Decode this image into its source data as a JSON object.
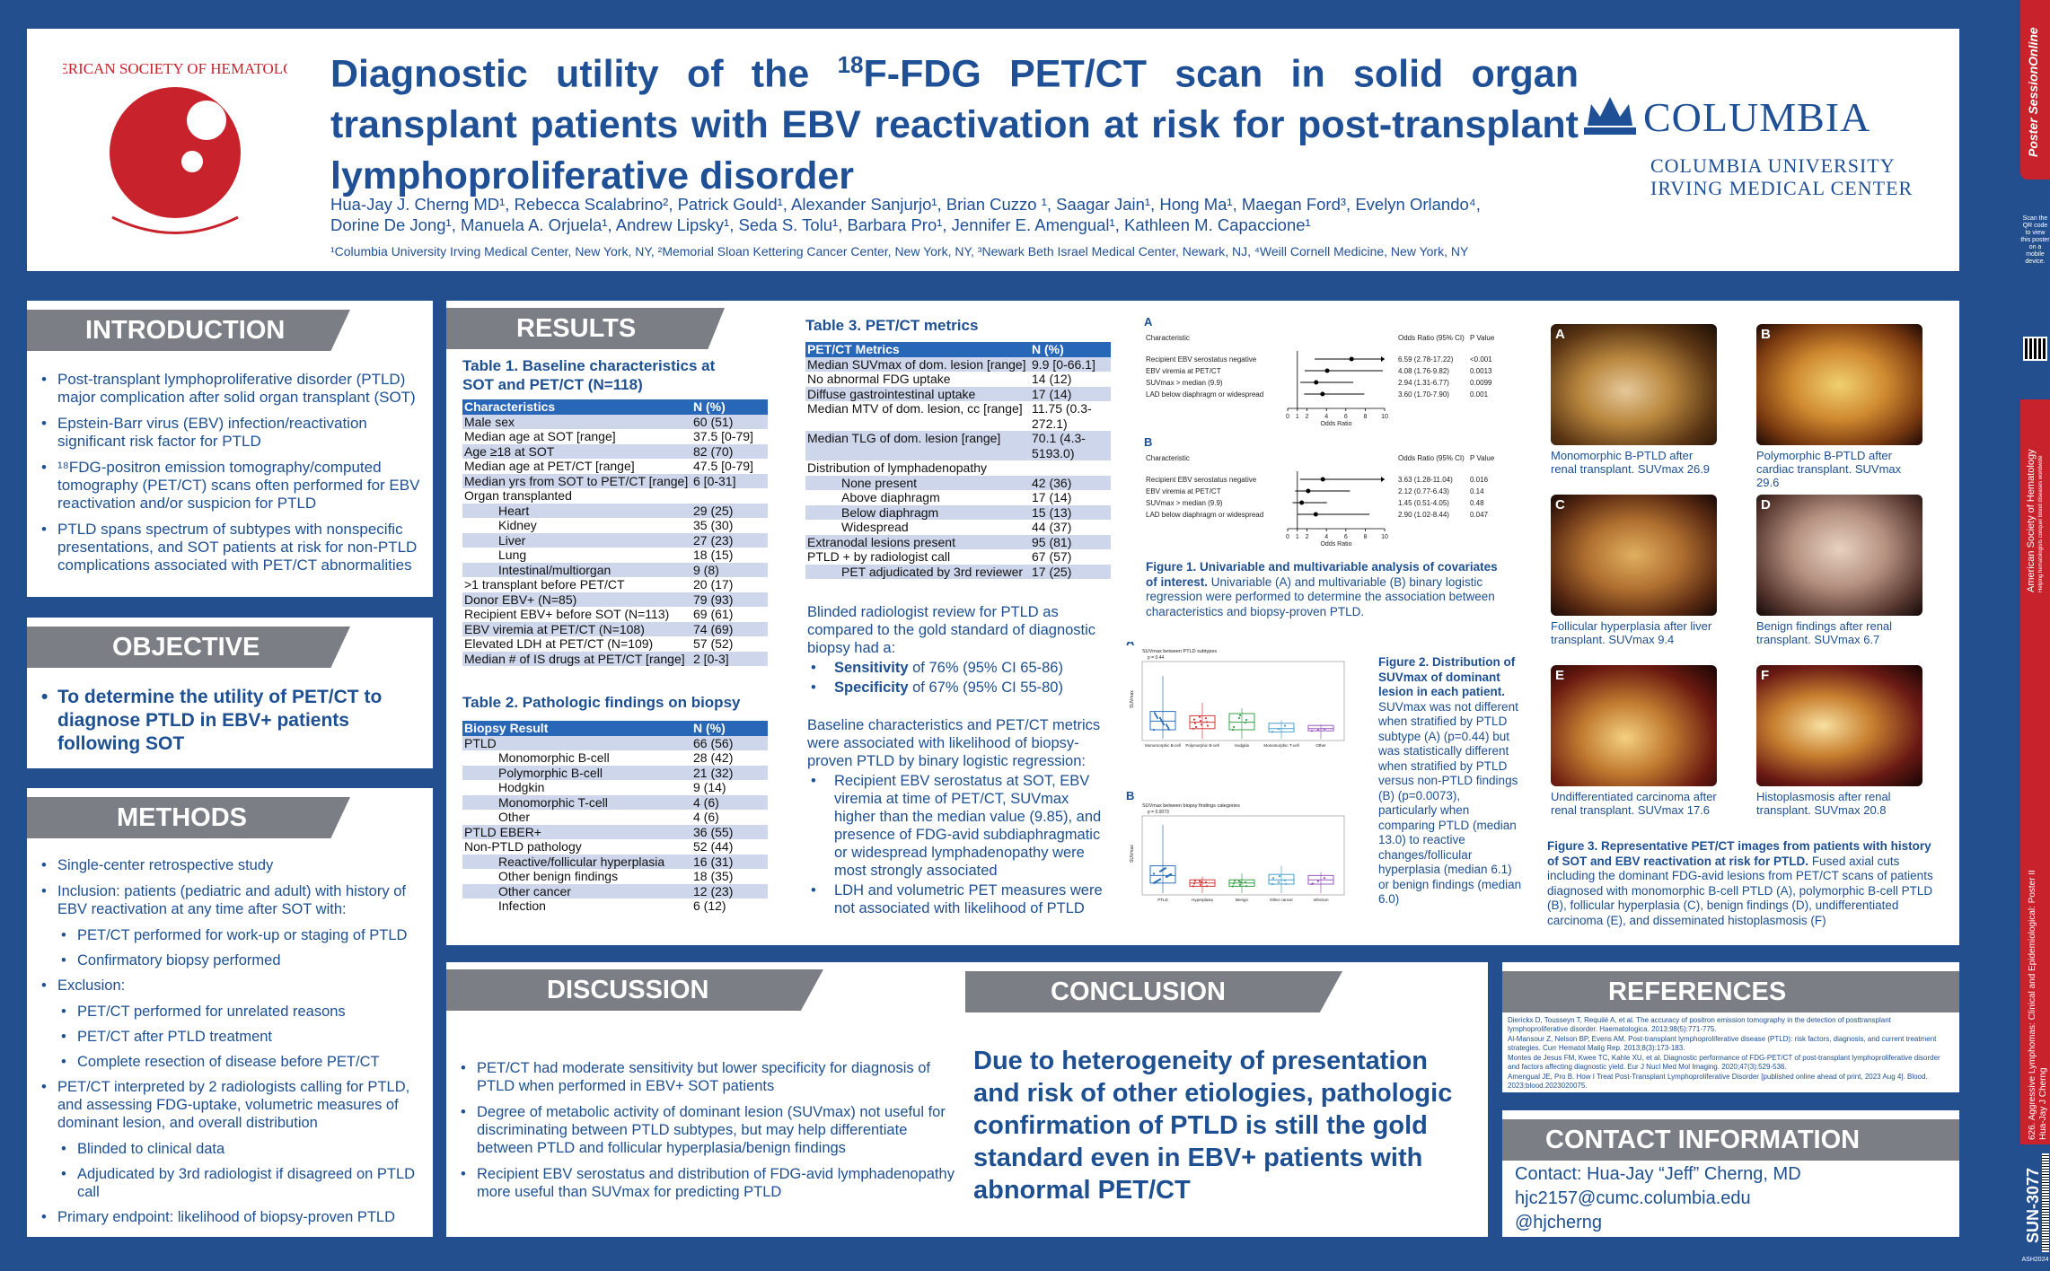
{
  "header": {
    "title_pre": "Diagnostic utility of the ",
    "title_sup": "18",
    "title_post": "F-FDG PET/CT scan in solid organ transplant patients with EBV reactivation at risk for post-transplant lymphoproliferative disorder",
    "logo_left_text": "AMERICAN SOCIETY OF HEMATOLOGY",
    "logo_right_name": "COLUMBIA",
    "logo_right_sub1": "COLUMBIA UNIVERSITY",
    "logo_right_sub2": "IRVING MEDICAL CENTER",
    "authors_line1": "Hua-Jay J. Cherng MD¹, Rebecca Scalabrino², Patrick Gould¹, Alexander Sanjurjo¹, Brian Cuzzo ¹, Saagar Jain¹, Hong Ma¹, Maegan Ford³, Evelyn Orlando⁴,",
    "authors_line2": "Dorine De Jong¹, Manuela A. Orjuela¹, Andrew Lipsky¹, Seda S. Tolu¹, Barbara Pro¹, Jennifer E. Amengual¹, Kathleen M. Capaccione¹",
    "affiliations": "¹Columbia University Irving Medical Center, New York, NY, ²Memorial Sloan Kettering Cancer Center, New York, NY, ³Newark Beth Israel Medical Center, Newark, NJ, ⁴Weill Cornell Medicine, New York, NY"
  },
  "introduction": {
    "heading": "INTRODUCTION",
    "bullets": [
      "Post-transplant lymphoproliferative disorder (PTLD) major complication after solid organ transplant (SOT)",
      "Epstein-Barr virus (EBV) infection/reactivation significant risk factor for PTLD",
      "¹⁸FDG-positron emission tomography/computed tomography (PET/CT) scans often performed for EBV reactivation and/or suspicion for PTLD",
      "PTLD spans spectrum of subtypes with nonspecific presentations, and SOT patients at risk for non-PTLD complications associated with PET/CT abnormalities"
    ]
  },
  "objective": {
    "heading": "OBJECTIVE",
    "text": "To determine the utility of PET/CT to diagnose PTLD in EBV+ patients following SOT"
  },
  "methods": {
    "heading": "METHODS",
    "items": [
      {
        "t": "Single-center retrospective study",
        "s": 0
      },
      {
        "t": "Inclusion: patients (pediatric and adult) with history of EBV reactivation at any time after SOT with:",
        "s": 0
      },
      {
        "t": "PET/CT performed for work-up or staging of PTLD",
        "s": 1
      },
      {
        "t": "Confirmatory biopsy performed",
        "s": 1
      },
      {
        "t": "Exclusion:",
        "s": 0
      },
      {
        "t": "PET/CT performed for unrelated reasons",
        "s": 1
      },
      {
        "t": "PET/CT after PTLD treatment",
        "s": 1
      },
      {
        "t": "Complete resection of disease before PET/CT",
        "s": 1
      },
      {
        "t": "PET/CT interpreted by 2 radiologists calling for PTLD, and assessing FDG-uptake, volumetric measures of dominant lesion, and overall distribution",
        "s": 0
      },
      {
        "t": "Blinded to clinical data",
        "s": 1
      },
      {
        "t": "Adjudicated by 3rd radiologist if disagreed on PTLD call",
        "s": 1
      },
      {
        "t": "Primary endpoint: likelihood of biopsy-proven PTLD",
        "s": 0
      }
    ]
  },
  "results": {
    "heading": "RESULTS",
    "table1_title": "Table 1. Baseline characteristics at SOT and PET/CT (N=118)",
    "table1_header": [
      "Characteristics",
      "N (%)"
    ],
    "table1_rows": [
      [
        "Male sex",
        "60 (51)",
        0
      ],
      [
        "Median age at SOT [range]",
        "37.5 [0-79]",
        0
      ],
      [
        "Age ≥18 at SOT",
        "82 (70)",
        0
      ],
      [
        "Median age at PET/CT [range]",
        "47.5 [0-79]",
        0
      ],
      [
        "Median yrs from SOT to PET/CT [range]",
        "6 [0-31]",
        0
      ],
      [
        "Organ transplanted",
        "",
        0
      ],
      [
        "Heart",
        "29 (25)",
        2
      ],
      [
        "Kidney",
        "35 (30)",
        2
      ],
      [
        "Liver",
        "27 (23)",
        2
      ],
      [
        "Lung",
        "18 (15)",
        2
      ],
      [
        "Intestinal/multiorgan",
        "9 (8)",
        2
      ],
      [
        ">1 transplant before PET/CT",
        "20 (17)",
        0
      ],
      [
        "Donor EBV+ (N=85)",
        "79 (93)",
        0
      ],
      [
        "Recipient EBV+ before SOT (N=113)",
        "69 (61)",
        0
      ],
      [
        "EBV viremia at PET/CT (N=108)",
        "74 (69)",
        0
      ],
      [
        "Elevated LDH at PET/CT (N=109)",
        "57 (52)",
        0
      ],
      [
        "Median # of IS drugs at PET/CT [range]",
        "2 [0-3]",
        0
      ]
    ],
    "table2_title": "Table 2. Pathologic findings on biopsy",
    "table2_header": [
      "Biopsy Result",
      "N (%)"
    ],
    "table2_rows": [
      [
        "PTLD",
        "66 (56)",
        0
      ],
      [
        "Monomorphic B-cell",
        "28 (42)",
        2
      ],
      [
        "Polymorphic B-cell",
        "21 (32)",
        2
      ],
      [
        "Hodgkin",
        "9 (14)",
        2
      ],
      [
        "Monomorphic T-cell",
        "4 (6)",
        2
      ],
      [
        "Other",
        "4 (6)",
        2
      ],
      [
        "PTLD EBER+",
        "36 (55)",
        0
      ],
      [
        "Non-PTLD pathology",
        "52 (44)",
        0
      ],
      [
        "Reactive/follicular hyperplasia",
        "16 (31)",
        2
      ],
      [
        "Other benign findings",
        "18 (35)",
        2
      ],
      [
        "Other cancer",
        "12 (23)",
        2
      ],
      [
        "Infection",
        "6 (12)",
        2
      ]
    ],
    "table3_title": "Table 3. PET/CT metrics",
    "table3_header": [
      "PET/CT Metrics",
      "N (%)"
    ],
    "table3_rows": [
      [
        "Median SUVmax of dom. lesion [range]",
        "9.9 [0-66.1]",
        0
      ],
      [
        "No abnormal FDG uptake",
        "14 (12)",
        0
      ],
      [
        "Diffuse gastrointestinal uptake",
        "17 (14)",
        0
      ],
      [
        "Median MTV of dom. lesion, cc [range]",
        "11.75 (0.3-272.1)",
        0
      ],
      [
        "Median TLG of dom. lesion [range]",
        "70.1 (4.3-5193.0)",
        0
      ],
      [
        "Distribution of lymphadenopathy",
        "",
        0
      ],
      [
        "None present",
        "42 (36)",
        2
      ],
      [
        "Above diaphragm",
        "17 (14)",
        2
      ],
      [
        "Below diaphragm",
        "15 (13)",
        2
      ],
      [
        "Widespread",
        "44 (37)",
        2
      ],
      [
        "Extranodal lesions present",
        "95 (81)",
        0
      ],
      [
        "PTLD + by radiologist call",
        "67 (57)",
        0
      ],
      [
        "PET adjudicated by 3rd reviewer",
        "17 (25)",
        2
      ]
    ],
    "review_intro": "Blinded radiologist review for PTLD as compared to the gold standard of diagnostic biopsy had a:",
    "sens_label": "Sensitivity",
    "sens_text": " of 76% (95% CI 65-86)",
    "spec_label": "Specificity",
    "spec_text": " of 67% (95% CI 55-80)",
    "assoc_intro": "Baseline characteristics and PET/CT metrics were associated with likelihood of biopsy-proven PTLD by binary logistic regression:",
    "assoc_bullets": [
      "Recipient EBV serostatus at SOT, EBV viremia at time of PET/CT, SUVmax higher than the median value (9.85), and presence of FDG-avid subdiaphragmatic or widespread lymphadenopathy were most strongly associated",
      "LDH and volumetric PET measures were not associated with likelihood of PTLD"
    ]
  },
  "figure1": {
    "panelA": "A",
    "panelB": "B",
    "col_char": "Characteristic",
    "col_or": "Odds Ratio (95% CI)",
    "col_p": "P Value",
    "rowsA": [
      [
        "Recipient EBV serostatus negative",
        "6.59 (2.78-17.22)",
        "<0.001"
      ],
      [
        "EBV viremia at PET/CT",
        "4.08 (1.76-9.82)",
        "0.0013"
      ],
      [
        "SUVmax > median (9.9)",
        "2.94 (1.31-6.77)",
        "0.0099"
      ],
      [
        "LAD below diaphragm or widespread",
        "3.60 (1.70-7.90)",
        "0.001"
      ]
    ],
    "rowsB": [
      [
        "Recipient EBV serostatus negative",
        "3.63 (1.28-11.04)",
        "0.016"
      ],
      [
        "EBV viremia at PET/CT",
        "2.12 (0.77-6.43)",
        "0.14"
      ],
      [
        "SUVmax > median (9.9)",
        "1.45 (0.51-4.05)",
        "0.48"
      ],
      [
        "LAD below diaphragm or widespread",
        "2.90 (1.02-8.44)",
        "0.047"
      ]
    ],
    "axis_ticks": [
      "0",
      "1",
      "2",
      "4",
      "6",
      "8",
      "10"
    ],
    "axis_label": "Odds Ratio",
    "caption_bold": "Figure 1. Univariable and multivariable analysis of covariates of interest.",
    "caption": " Univariable (A) and multivariable (B) binary logistic regression were performed to determine the association between characteristics and biopsy-proven PTLD."
  },
  "figure2": {
    "panelA": "A",
    "panelB": "B",
    "titleA": "SUVmax between PTLD subtypes",
    "pA": "p = 0.44",
    "titleB": "SUVmax between biopsy findings categories",
    "pB": "p = 0.0073",
    "ylabel": "SUVmax",
    "catsA": [
      "Monomorphic B-cell",
      "Polymorphic B-cell",
      "Hodgkin",
      "Monomorphic T-cell",
      "Other"
    ],
    "catsB": [
      "PTLD",
      "Hyperplasia",
      "Benign",
      "Other cancer",
      "Infection"
    ],
    "caption_bold": "Figure 2. Distribution of SUVmax of dominant lesion in each patient.",
    "caption": " SUVmax was not different when stratified by PTLD subtype (A) (p=0.44) but was statistically different when stratified by PTLD versus non-PTLD findings (B) (p=0.0073), particularly when comparing PTLD (median 13.0) to reactive changes/follicular hyperplasia (median 6.1) or benign findings (median 6.0)"
  },
  "figure3": {
    "images": [
      {
        "letter": "A",
        "caption": "Monomorphic B-PTLD after renal transplant. SUVmax 26.9"
      },
      {
        "letter": "B",
        "caption": "Polymorphic B-PTLD after cardiac transplant. SUVmax 29.6"
      },
      {
        "letter": "C",
        "caption": "Follicular hyperplasia after liver transplant. SUVmax 9.4"
      },
      {
        "letter": "D",
        "caption": "Benign findings after renal transplant. SUVmax 6.7"
      },
      {
        "letter": "E",
        "caption": "Undifferentiated carcinoma after renal transplant. SUVmax 17.6"
      },
      {
        "letter": "F",
        "caption": "Histoplasmosis after renal transplant. SUVmax 20.8"
      }
    ],
    "caption_bold": "Figure 3. Representative PET/CT images from patients with history of SOT and EBV reactivation at risk for PTLD.",
    "caption": " Fused axial cuts including the dominant FDG-avid lesions from PET/CT scans of patients diagnosed with monomorphic B-cell PTLD (A), polymorphic B-cell PTLD (B), follicular hyperplasia (C), benign findings (D), undifferentiated carcinoma (E), and disseminated histoplasmosis (F)"
  },
  "discussion": {
    "heading": "DISCUSSION",
    "bullets": [
      "PET/CT had moderate sensitivity but lower specificity for diagnosis of PTLD when performed in EBV+ SOT patients",
      "Degree of metabolic activity of dominant lesion (SUVmax) not useful for discriminating between PTLD subtypes, but may help differentiate between PTLD and follicular hyperplasia/benign findings",
      "Recipient EBV serostatus and distribution of FDG-avid lymphadenopathy more useful than SUVmax for predicting PTLD"
    ]
  },
  "conclusion": {
    "heading": "CONCLUSION",
    "text": "Due to heterogeneity of presentation and risk of other etiologies, pathologic confirmation of PTLD is still the gold standard even in EBV+ patients with abnormal PET/CT"
  },
  "references": {
    "heading": "REFERENCES",
    "items": [
      "Dierickx D, Tousseyn T, Requilé A, et al. The accuracy of positron emission tomography in the detection of posttransplant lymphoproliferative disorder. Haematologica. 2013;98(5):771-775.",
      "Al-Mansour Z, Nelson BP, Evens AM. Post-transplant lymphoproliferative disease (PTLD): risk factors, diagnosis, and current treatment strategies. Curr Hematol Malig Rep. 2013;8(3):173-183.",
      "Montes de Jesus FM, Kwee TC, Kahle XU, et al. Diagnostic performance of FDG-PET/CT of post-transplant lymphoproliferative disorder and factors affecting diagnostic yield. Eur J Nucl Med Mol Imaging. 2020;47(3):529-536.",
      "Amengual JE, Pro B. How I Treat Post-Transplant Lymphoproliferative Disorder [published online ahead of print, 2023 Aug 4]. Blood. 2023;blood.2023020075."
    ]
  },
  "contact": {
    "heading": "CONTACT INFORMATION",
    "line1": "Contact: Hua-Jay “Jeff” Cherng, MD",
    "line2": "hjc2157@cumc.columbia.edu",
    "line3": "@hjcherng"
  },
  "sidebar": {
    "brand": "Poster SessionOnline",
    "qr_text": "Scan the QR code to view this poster on a mobile device.",
    "ash": "American Society of Hematology",
    "ash_tag": "Helping hematologists conquer blood diseases worldwide",
    "session": "626. Aggressive Lymphomas: Clinical and Epidemiological: Poster II",
    "author": "Hua-Jay J Cherng",
    "poster_id": "SUN-3077",
    "year": "ASH2024"
  }
}
